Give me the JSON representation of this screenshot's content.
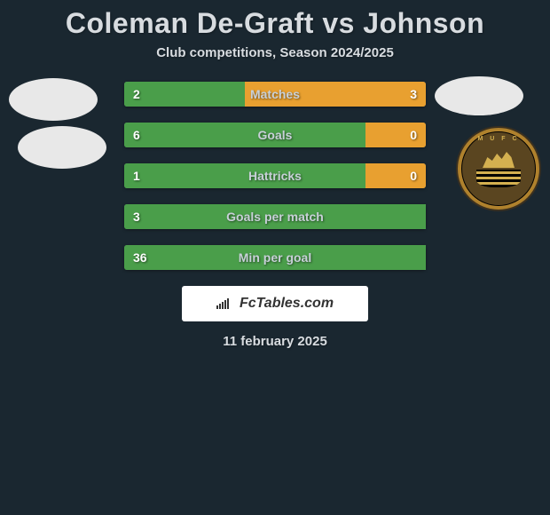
{
  "title": "Coleman De-Graft vs Johnson",
  "subtitle": "Club competitions, Season 2024/2025",
  "date": "11 february 2025",
  "branding": "FcTables.com",
  "colors": {
    "left_bar": "#4a9e4a",
    "right_bar": "#e8a030",
    "neutral_bar": "#5a6870",
    "background": "#1a2730"
  },
  "stats": [
    {
      "label": "Matches",
      "left_value": "2",
      "right_value": "3",
      "left_width": 40,
      "right_width": 60,
      "left_color": "#4a9e4a",
      "right_color": "#e8a030"
    },
    {
      "label": "Goals",
      "left_value": "6",
      "right_value": "0",
      "left_width": 80,
      "right_width": 20,
      "left_color": "#4a9e4a",
      "right_color": "#e8a030"
    },
    {
      "label": "Hattricks",
      "left_value": "1",
      "right_value": "0",
      "left_width": 80,
      "right_width": 20,
      "left_color": "#4a9e4a",
      "right_color": "#e8a030"
    },
    {
      "label": "Goals per match",
      "left_value": "3",
      "right_value": "",
      "left_width": 100,
      "right_width": 0,
      "left_color": "#4a9e4a",
      "right_color": "#e8a030"
    },
    {
      "label": "Min per goal",
      "left_value": "36",
      "right_value": "",
      "left_width": 100,
      "right_width": 0,
      "left_color": "#4a9e4a",
      "right_color": "#e8a030"
    }
  ]
}
